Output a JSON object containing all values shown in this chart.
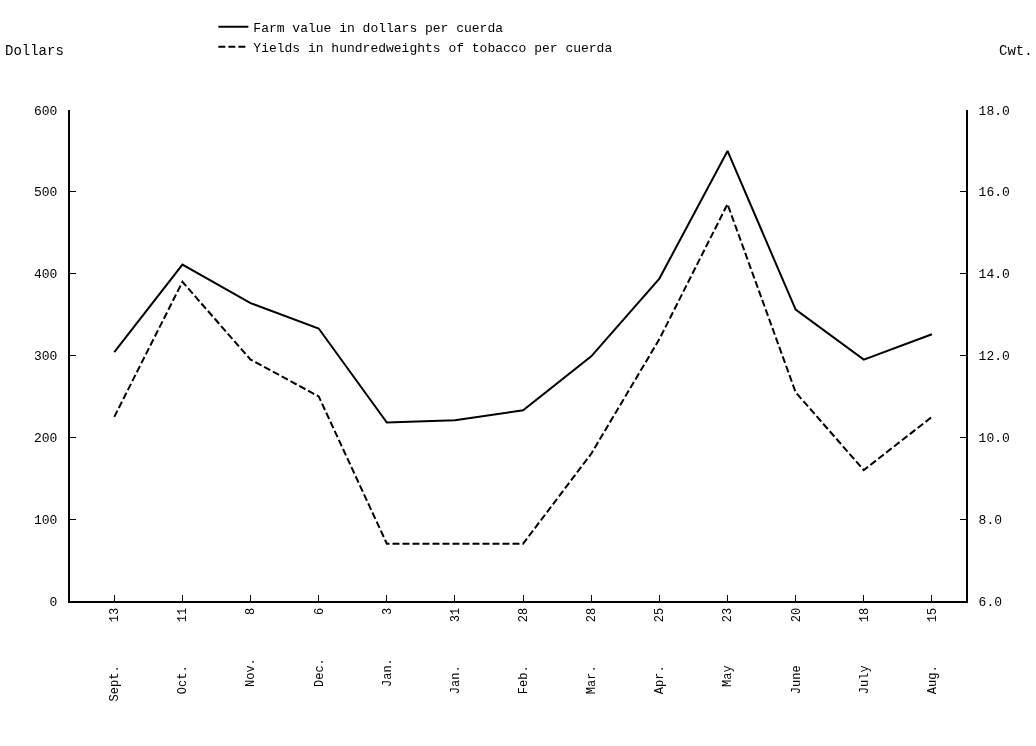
{
  "chart_data": {
    "type": "line",
    "categories": [
      "Sept. 13",
      "Oct. 11",
      "Nov. 8",
      "Dec. 6",
      "Jan. 3",
      "Jan. 31",
      "Feb. 28",
      "Mar. 28",
      "Apr. 25",
      "May 23",
      "June 20",
      "July 18",
      "Aug. 15"
    ],
    "series": [
      {
        "name": "Farm value in dollars per cuerda",
        "color": "#000000",
        "line_style": "solid",
        "values": [
          304,
          411,
          364,
          333,
          218,
          221,
          233,
          299,
          394,
          550,
          356,
          295,
          326
        ]
      },
      {
        "name": "Yields in hundredweights of tobacco per cuerda",
        "color": "#000000",
        "line_style": "dashed",
        "axis": "y2",
        "values": [
          10.5,
          13.8,
          11.9,
          11.0,
          7.4,
          7.4,
          7.4,
          9.6,
          12.4,
          15.7,
          11.1,
          9.2,
          10.5
        ]
      }
    ],
    "ylabel": "Dollars",
    "y2label": "Cwt.",
    "ylim": [
      0,
      600
    ],
    "yticks": [
      0,
      100,
      200,
      300,
      400,
      500,
      600
    ],
    "y2lim": [
      6,
      18
    ],
    "y2ticks": [
      {
        "value": 6,
        "label": "6.0"
      },
      {
        "value": 8,
        "label": "8.0"
      },
      {
        "value": 10,
        "label": "10.0"
      },
      {
        "value": 12,
        "label": "12.0"
      },
      {
        "value": 14,
        "label": "14.0"
      },
      {
        "value": 16,
        "label": "16.0"
      },
      {
        "value": 18,
        "label": "18.0"
      }
    ],
    "legend": "top",
    "grid": false,
    "marker": "none"
  }
}
